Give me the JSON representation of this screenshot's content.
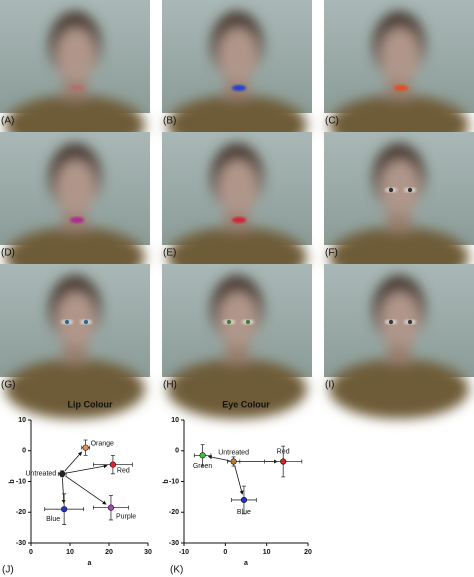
{
  "panels": [
    "(A)",
    "(B)",
    "(C)",
    "(D)",
    "(E)",
    "(F)",
    "(G)",
    "(H)",
    "(I)"
  ],
  "chart_data": [
    {
      "type": "scatter",
      "title": "Lip Colour",
      "panel_label": "(J)",
      "x_label": "a",
      "y_label": "b",
      "xlim": [
        0,
        30
      ],
      "xticks": [
        0,
        10,
        20,
        30
      ],
      "ylim": [
        -30,
        10
      ],
      "yticks": [
        10,
        0,
        -10,
        -20,
        -30
      ],
      "series": [
        {
          "name": "Untreated",
          "color": "#222222",
          "x": [
            8
          ],
          "values": [
            -7.5
          ],
          "xerr": [
            1
          ],
          "yerr": [
            1
          ]
        },
        {
          "name": "Orange",
          "color": "#f08a3c",
          "x": [
            14
          ],
          "values": [
            1
          ],
          "xerr": [
            1
          ],
          "yerr": [
            2.5
          ]
        },
        {
          "name": "Red",
          "color": "#e8252a",
          "x": [
            21
          ],
          "values": [
            -4.5
          ],
          "xerr": [
            5
          ],
          "yerr": [
            3
          ]
        },
        {
          "name": "Blue",
          "color": "#2233cc",
          "x": [
            8.5
          ],
          "values": [
            -19
          ],
          "xerr": [
            5
          ],
          "yerr": [
            5
          ]
        },
        {
          "name": "Purple",
          "color": "#b040c0",
          "x": [
            20.5
          ],
          "values": [
            -18.5
          ],
          "xerr": [
            4.5
          ],
          "yerr": [
            4
          ]
        }
      ]
    },
    {
      "type": "scatter",
      "title": "Eye Colour",
      "panel_label": "(K)",
      "x_label": "a",
      "y_label": "b",
      "xlim": [
        -10,
        20
      ],
      "xticks": [
        -10,
        0,
        10,
        20
      ],
      "ylim": [
        -30,
        10
      ],
      "yticks": [
        10,
        0,
        -10,
        -20,
        -30
      ],
      "series": [
        {
          "name": "Untreated",
          "color": "#c07a30",
          "x": [
            2
          ],
          "values": [
            -3.5
          ],
          "xerr": [
            1.5
          ],
          "yerr": [
            1.5
          ]
        },
        {
          "name": "Green",
          "color": "#40c040",
          "x": [
            -5.5
          ],
          "values": [
            -1.5
          ],
          "xerr": [
            2
          ],
          "yerr": [
            3.5
          ]
        },
        {
          "name": "Red",
          "color": "#e02020",
          "x": [
            14
          ],
          "values": [
            -3.5
          ],
          "xerr": [
            4.5
          ],
          "yerr": [
            5
          ]
        },
        {
          "name": "Blue",
          "color": "#2030d0",
          "x": [
            4.5
          ],
          "values": [
            -16
          ],
          "xerr": [
            3
          ],
          "yerr": [
            4.5
          ]
        }
      ]
    }
  ]
}
